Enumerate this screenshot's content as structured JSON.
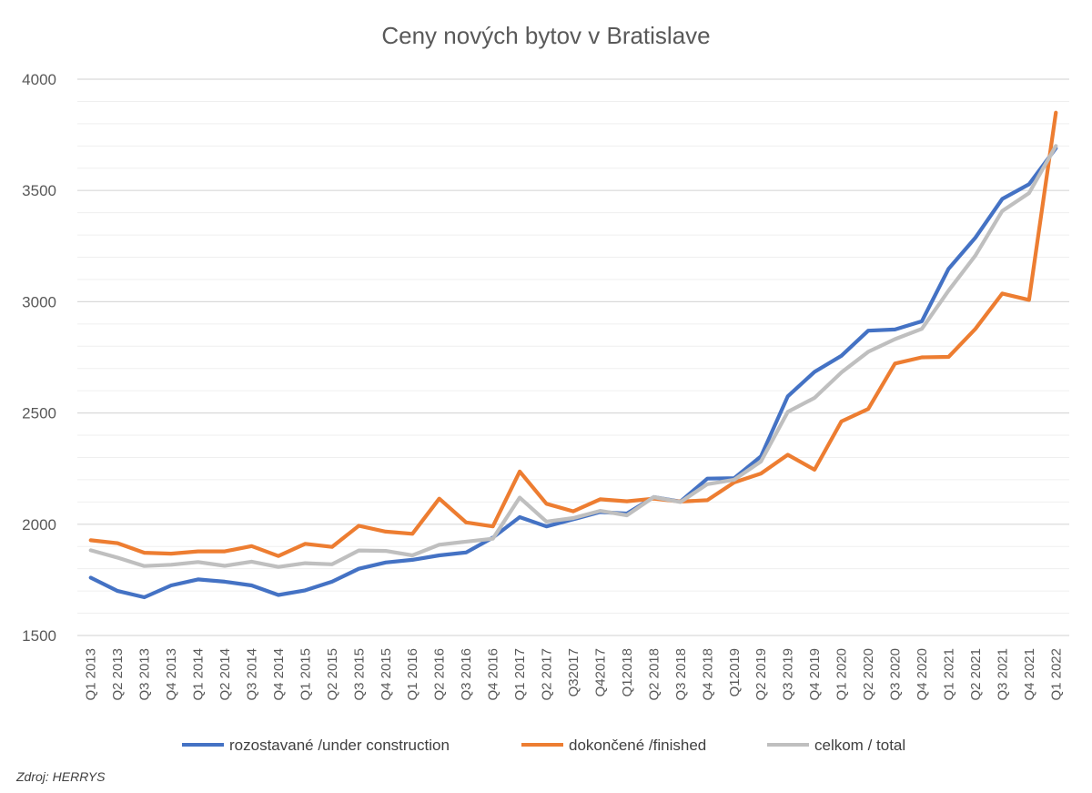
{
  "chart_data": {
    "type": "line",
    "title": "Ceny nových bytov v Bratislave",
    "xlabel": "",
    "ylabel": "",
    "ylim": [
      1500,
      4000
    ],
    "yticks": [
      1500,
      2000,
      2500,
      3000,
      3500,
      4000
    ],
    "y_minor_step": 100,
    "grid": true,
    "legend_position": "bottom",
    "categories": [
      "Q1 2013",
      "Q2 2013",
      "Q3 2013",
      "Q4 2013",
      "Q1 2014",
      "Q2 2014",
      "Q3 2014",
      "Q4 2014",
      "Q1 2015",
      "Q2 2015",
      "Q3 2015",
      "Q4 2015",
      "Q1 2016",
      "Q2 2016",
      "Q3 2016",
      "Q4 2016",
      "Q1 2017",
      "Q2 2017",
      "Q32017",
      "Q42017",
      "Q12018",
      "Q2 2018",
      "Q3 2018",
      "Q4 2018",
      "Q12019",
      "Q2 2019",
      "Q3 2019",
      "Q4 2019",
      "Q1 2020",
      "Q2 2020",
      "Q3 2020",
      "Q4 2020",
      "Q1 2021",
      "Q2 2021",
      "Q3 2021",
      "Q4 2021",
      "Q1 2022"
    ],
    "series": [
      {
        "name": "rozostavané /under construction",
        "color": "#4472C4",
        "values": [
          1760,
          1700,
          1672,
          1725,
          1752,
          1742,
          1725,
          1682,
          1703,
          1742,
          1800,
          1828,
          1840,
          1860,
          1873,
          1940,
          2032,
          1990,
          2022,
          2055,
          2048,
          2122,
          2102,
          2205,
          2207,
          2305,
          2575,
          2685,
          2757,
          2870,
          2875,
          2912,
          3148,
          3288,
          3462,
          3528,
          3690
        ]
      },
      {
        "name": "dokončené /finished",
        "color": "#ED7D31",
        "values": [
          1928,
          1915,
          1872,
          1868,
          1878,
          1878,
          1902,
          1857,
          1912,
          1898,
          1993,
          1967,
          1957,
          2115,
          2008,
          1990,
          2237,
          2092,
          2058,
          2112,
          2103,
          2115,
          2102,
          2108,
          2188,
          2228,
          2312,
          2245,
          2462,
          2518,
          2722,
          2750,
          2752,
          2878,
          3037,
          3008,
          3850
        ]
      },
      {
        "name": "celkom / total",
        "color": "#BFBFBF",
        "values": [
          1883,
          1850,
          1812,
          1818,
          1830,
          1813,
          1832,
          1808,
          1825,
          1820,
          1882,
          1880,
          1860,
          1908,
          1922,
          1935,
          2120,
          2012,
          2028,
          2060,
          2040,
          2122,
          2100,
          2180,
          2200,
          2282,
          2505,
          2568,
          2682,
          2775,
          2832,
          2878,
          3050,
          3208,
          3408,
          3488,
          3700
        ]
      }
    ]
  },
  "source": "Zdroj: HERRYS"
}
